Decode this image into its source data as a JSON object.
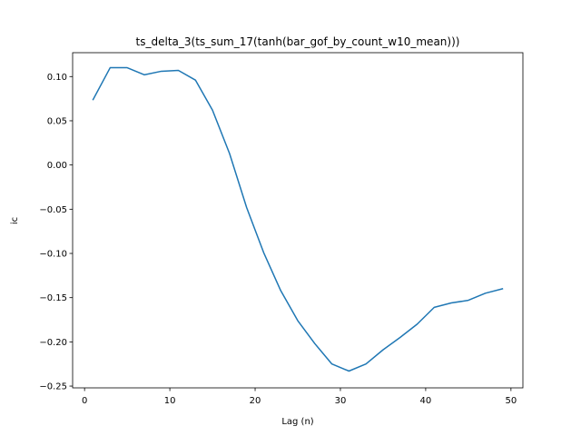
{
  "chart_data": {
    "type": "line",
    "title": "ts_delta_3(ts_sum_17(tanh(bar_gof_by_count_w10_mean)))",
    "xlabel": "Lag (n)",
    "ylabel": "ic",
    "xlim": [
      -1.4,
      51.4
    ],
    "ylim": [
      -0.252,
      0.127
    ],
    "xticks": [
      0,
      10,
      20,
      30,
      40,
      50
    ],
    "yticks": [
      0.1,
      0.05,
      0.0,
      -0.05,
      -0.1,
      -0.15,
      -0.2,
      -0.25
    ],
    "ytick_labels": [
      "0.10",
      "0.05",
      "0.00",
      "−0.05",
      "−0.10",
      "−0.15",
      "−0.20",
      "−0.25"
    ],
    "grid": false,
    "series": [
      {
        "color": "#1f77b4",
        "x": [
          1,
          3,
          5,
          7,
          9,
          11,
          13,
          15,
          17,
          19,
          21,
          23,
          25,
          27,
          29,
          31,
          33,
          35,
          37,
          39,
          41,
          43,
          45,
          47,
          49
        ],
        "y": [
          0.074,
          0.11,
          0.11,
          0.102,
          0.106,
          0.107,
          0.096,
          0.062,
          0.013,
          -0.048,
          -0.099,
          -0.142,
          -0.176,
          -0.202,
          -0.225,
          -0.233,
          -0.225,
          -0.209,
          -0.195,
          -0.18,
          -0.161,
          -0.156,
          -0.153,
          -0.145,
          -0.14
        ]
      }
    ]
  }
}
